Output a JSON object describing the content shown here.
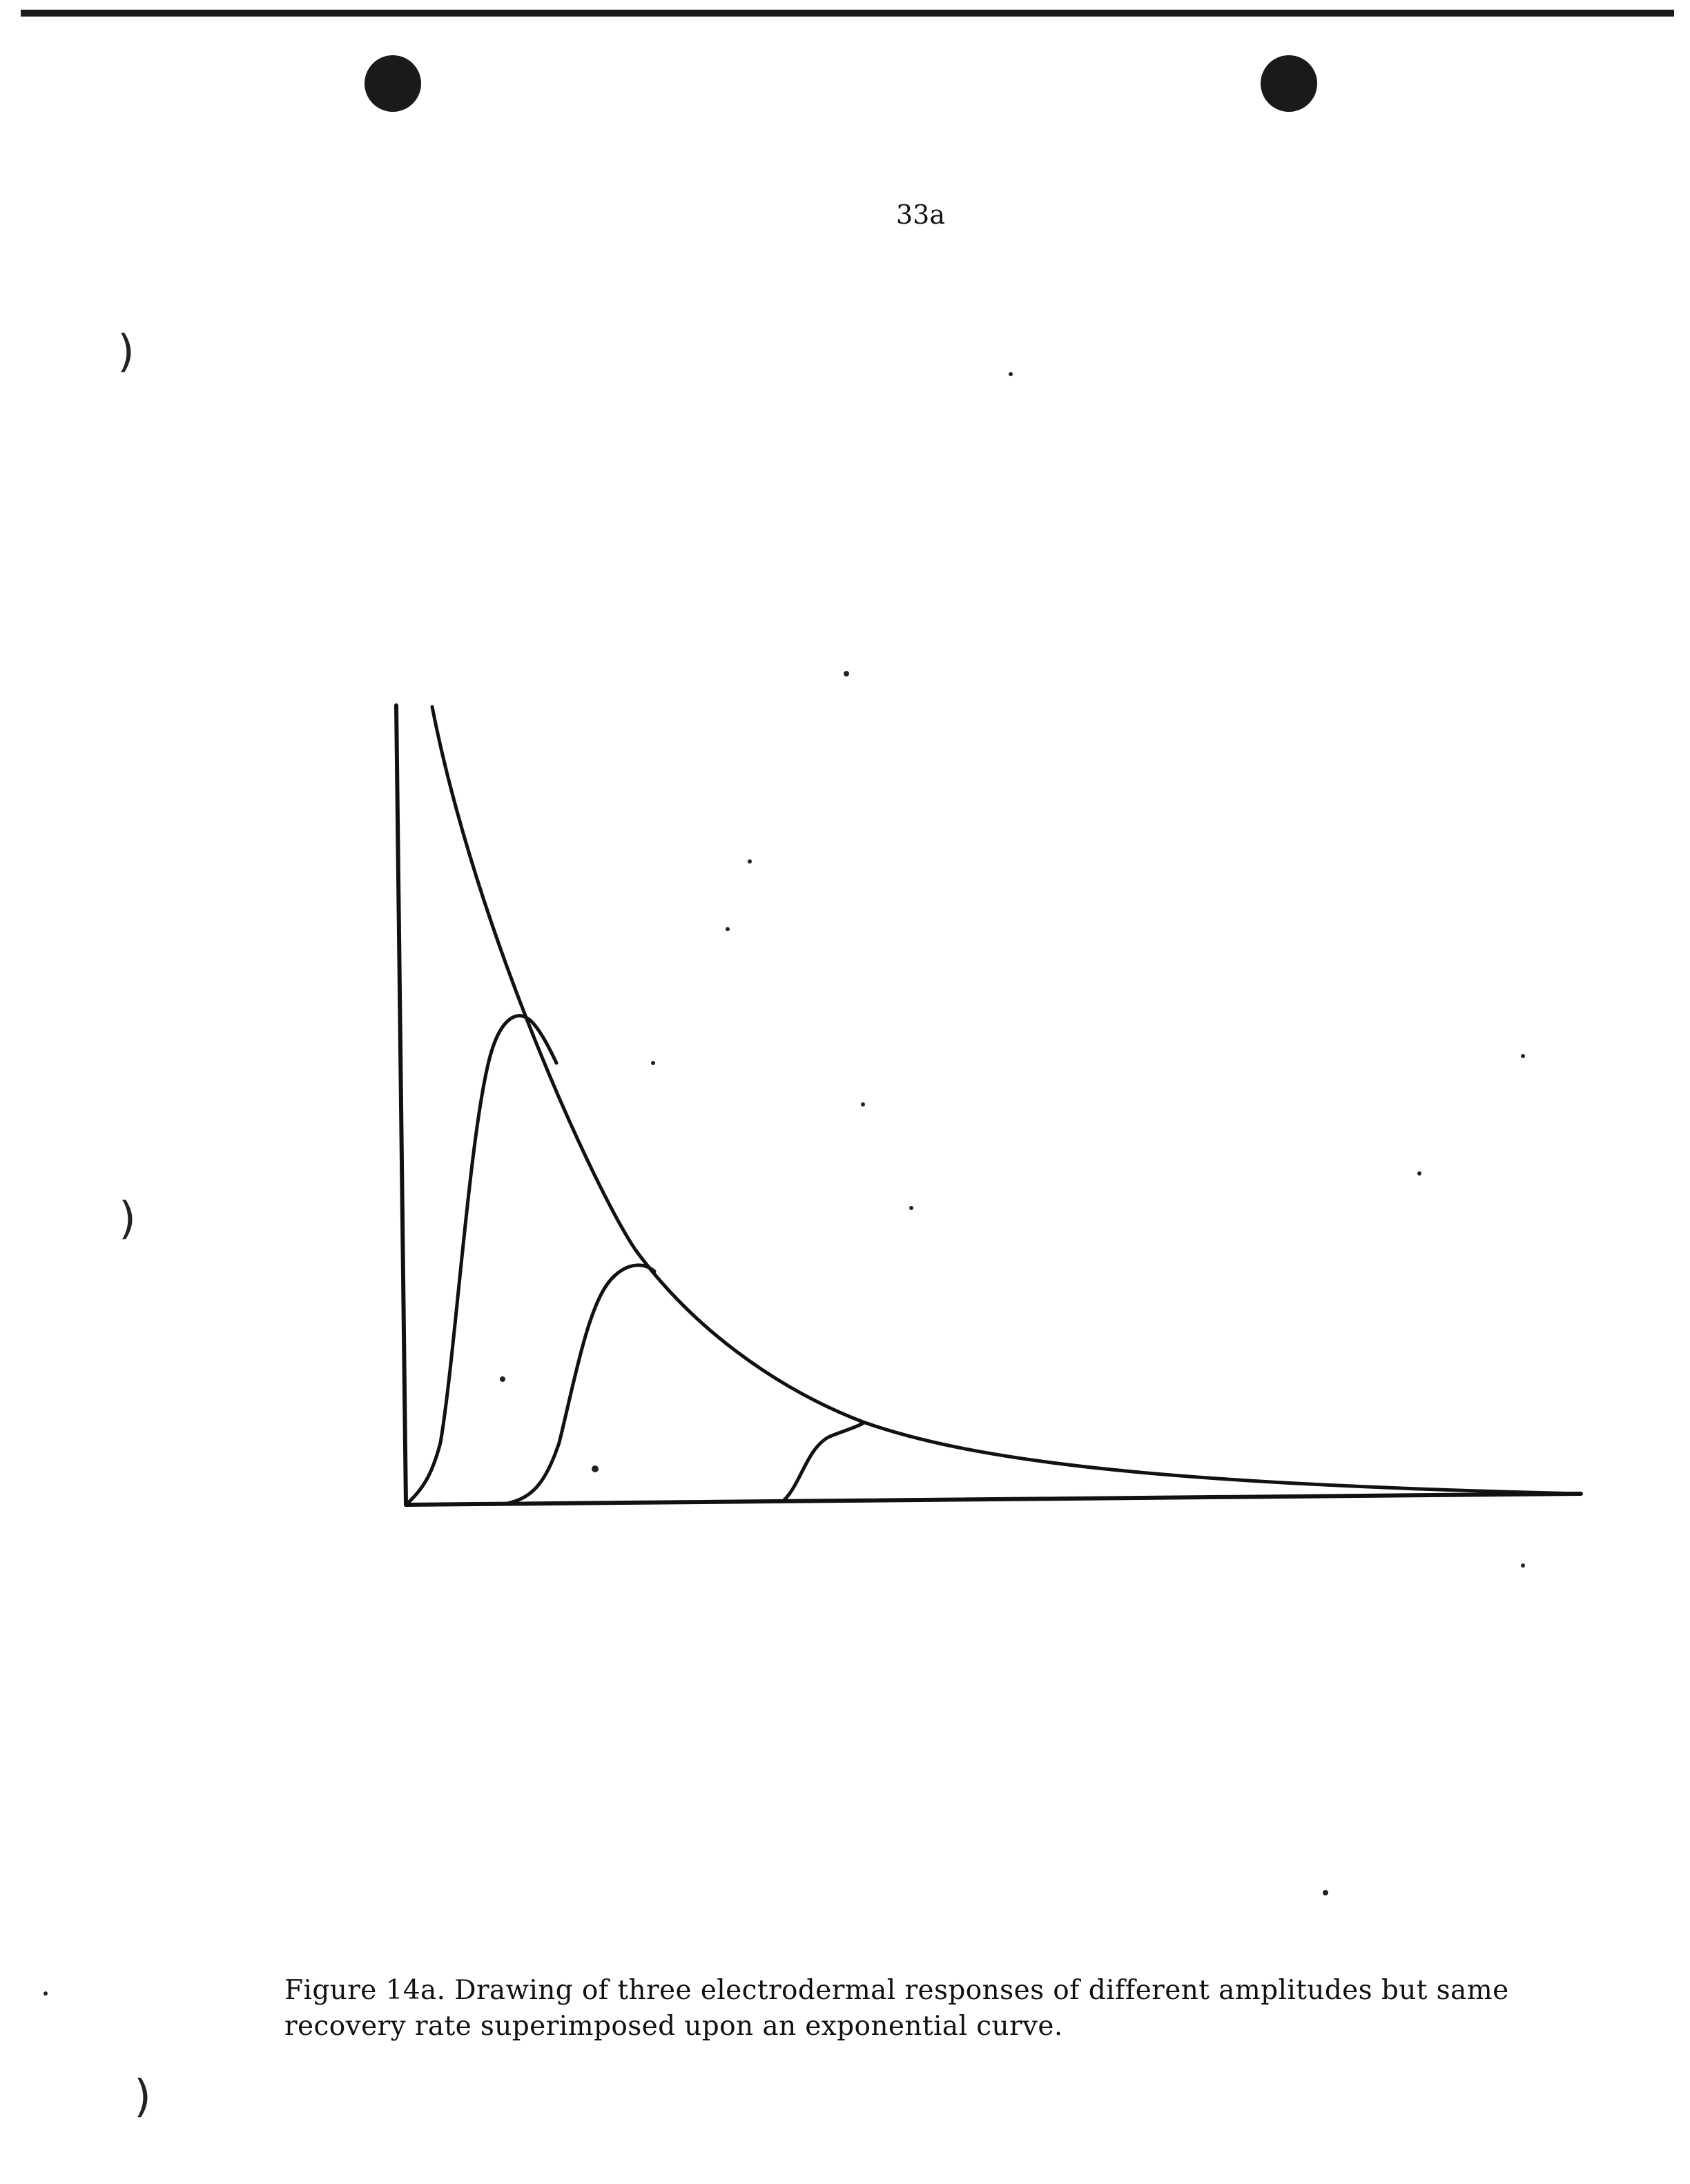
{
  "page": {
    "number": "33a"
  },
  "figure": {
    "caption": "Figure 14a. Drawing of three electrodermal responses of different amplitudes but same recovery rate superimposed upon an exponential curve.",
    "ink_color": "#111111"
  }
}
